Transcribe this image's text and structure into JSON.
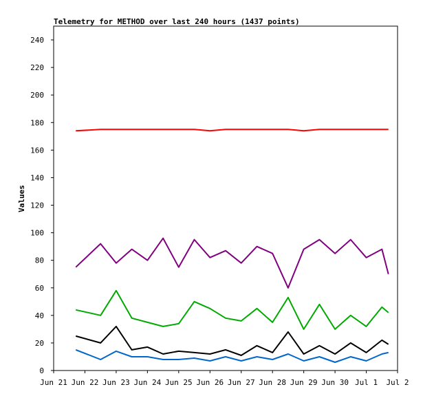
{
  "chart_data": {
    "type": "line",
    "title": "Telemetry for METHOD over last 240 hours (1437 points)",
    "xlabel": "",
    "ylabel": "Values",
    "ylim": [
      0,
      250
    ],
    "yticks": [
      0,
      20,
      40,
      60,
      80,
      100,
      120,
      140,
      160,
      180,
      200,
      220,
      240
    ],
    "xlim": [
      "2024-06-21",
      "2024-07-02"
    ],
    "xticks": [
      {
        "date": "2024-06-21",
        "label": "Jun 21"
      },
      {
        "date": "2024-06-22",
        "label": "Jun 22"
      },
      {
        "date": "2024-06-23",
        "label": "Jun 23"
      },
      {
        "date": "2024-06-24",
        "label": "Jun 24"
      },
      {
        "date": "2024-06-25",
        "label": "Jun 25"
      },
      {
        "date": "2024-06-26",
        "label": "Jun 26"
      },
      {
        "date": "2024-06-27",
        "label": "Jun 27"
      },
      {
        "date": "2024-06-28",
        "label": "Jun 28"
      },
      {
        "date": "2024-06-29",
        "label": "Jun 29"
      },
      {
        "date": "2024-06-30",
        "label": "Jun 30"
      },
      {
        "date": "2024-07-01",
        "label": "Jul 1"
      },
      {
        "date": "2024-07-02",
        "label": "Jul 2"
      }
    ],
    "grid": false,
    "x": [
      "2024-06-21 17:00",
      "2024-06-22 12:00",
      "2024-06-23 00:00",
      "2024-06-23 12:00",
      "2024-06-24 00:00",
      "2024-06-24 12:00",
      "2024-06-25 00:00",
      "2024-06-25 12:00",
      "2024-06-26 00:00",
      "2024-06-26 12:00",
      "2024-06-27 00:00",
      "2024-06-27 12:00",
      "2024-06-28 00:00",
      "2024-06-28 12:00",
      "2024-06-29 00:00",
      "2024-06-29 12:00",
      "2024-06-30 00:00",
      "2024-06-30 12:00",
      "2024-07-01 00:00",
      "2024-07-01 12:00",
      "2024-07-01 17:00"
    ],
    "series": [
      {
        "color": "#ff0000",
        "values": [
          174,
          175,
          175,
          175,
          175,
          175,
          175,
          175,
          174,
          175,
          175,
          175,
          175,
          175,
          174,
          175,
          175,
          175,
          175,
          175,
          175
        ]
      },
      {
        "color": "#800080",
        "values": [
          75,
          92,
          78,
          88,
          80,
          96,
          75,
          95,
          82,
          87,
          78,
          90,
          85,
          60,
          88,
          95,
          85,
          95,
          82,
          88,
          70
        ]
      },
      {
        "color": "#00aa00",
        "values": [
          44,
          40,
          58,
          38,
          35,
          32,
          34,
          50,
          45,
          38,
          36,
          45,
          35,
          53,
          30,
          48,
          30,
          40,
          32,
          46,
          42
        ]
      },
      {
        "color": "#000000",
        "values": [
          25,
          20,
          32,
          15,
          17,
          12,
          14,
          13,
          12,
          15,
          11,
          18,
          13,
          28,
          12,
          18,
          12,
          20,
          13,
          22,
          19
        ]
      },
      {
        "color": "#0066cc",
        "values": [
          15,
          8,
          14,
          10,
          10,
          8,
          8,
          9,
          7,
          10,
          7,
          10,
          8,
          12,
          7,
          10,
          6,
          10,
          7,
          12,
          13
        ]
      }
    ]
  }
}
